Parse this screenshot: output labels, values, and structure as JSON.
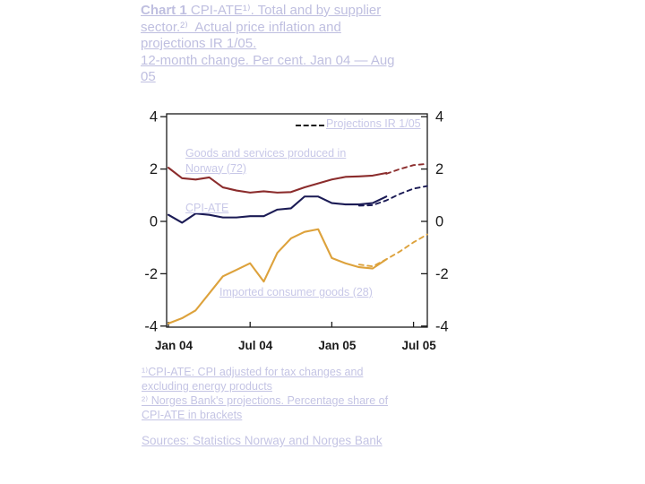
{
  "title": {
    "bold_lead": "Chart 1",
    "line1_rest": " CPI-ATE¹⁾. Total and by supplier",
    "line2": "sector.²⁾  Actual price inflation and",
    "line3": "projections IR 1/05.",
    "line4": "12-month change. Per cent. Jan 04 — Aug",
    "line5": "05"
  },
  "legend": {
    "projections_label": "Projections IR 1/05"
  },
  "series_labels": {
    "produced_in_norway": "Goods and services produced in Norway (72)",
    "cpi_ate": "CPI-ATE",
    "imported_goods": "Imported consumer goods (28)"
  },
  "footnotes": {
    "fn1_line1": "¹⁾CPI-ATE: CPI adjusted for tax changes and",
    "fn1_line2": "excluding energy products",
    "fn2_line1": "²⁾ Norges Bank's projections. Percentage share of",
    "fn2_line2": "CPI-ATE in brackets",
    "sources": "Sources: Statistics Norway and Norges Bank"
  },
  "colors": {
    "title_text": "#bfbfe0",
    "chart_label_text": "#c8c8e8",
    "footnote_text": "#c4c4e4",
    "axis": "#1a1a1a",
    "legend_dash": "#1a1a1a",
    "cpi_ate_line": "#1b1b55",
    "norway_line": "#8b2c2c",
    "imported_line": "#dda23c"
  },
  "chart_data": {
    "type": "line",
    "title": "CPI-ATE, total and by supplier sector. Actual price inflation and projections IR 1/05. 12-month change. Per cent. Jan 04 - Aug 05",
    "x": [
      "Jan 04",
      "Feb 04",
      "Mar 04",
      "Apr 04",
      "May 04",
      "Jun 04",
      "Jul 04",
      "Aug 04",
      "Sep 04",
      "Oct 04",
      "Nov 04",
      "Dec 04",
      "Jan 05",
      "Feb 05",
      "Mar 05",
      "Apr 05",
      "May 05",
      "Jun 05",
      "Jul 05",
      "Aug 05"
    ],
    "x_tick_indices": [
      0,
      6,
      12,
      18
    ],
    "x_tick_labels": [
      "Jan 04",
      "Jul 04",
      "Jan 05",
      "Jul 05"
    ],
    "y_ticks": [
      4,
      2,
      0,
      -2,
      -4
    ],
    "ylim": [
      -4,
      4
    ],
    "grid": false,
    "legend_entry": "Projections IR 1/05",
    "series": [
      {
        "name": "CPI-ATE",
        "color": "#1b1b55",
        "actual": [
          0.25,
          -0.05,
          0.3,
          0.25,
          0.15,
          0.15,
          0.2,
          0.2,
          0.45,
          0.5,
          0.95,
          0.95,
          0.7,
          0.65,
          0.65,
          0.7,
          0.95
        ],
        "projection": {
          "start_index": 14,
          "values": [
            0.6,
            0.62,
            0.8,
            1.05,
            1.25,
            1.35
          ]
        }
      },
      {
        "name": "Goods and services produced in Norway (72)",
        "color": "#8b2c2c",
        "actual": [
          2.05,
          1.65,
          1.6,
          1.68,
          1.3,
          1.18,
          1.1,
          1.15,
          1.1,
          1.12,
          1.3,
          1.45,
          1.6,
          1.7,
          1.72,
          1.75,
          1.85
        ],
        "projection": {
          "start_index": 16,
          "values": [
            1.82,
            2.0,
            2.15,
            2.2
          ]
        }
      },
      {
        "name": "Imported consumer goods (28)",
        "color": "#dda23c",
        "actual": [
          -3.9,
          -3.7,
          -3.4,
          -2.75,
          -2.1,
          -1.85,
          -1.6,
          -2.3,
          -1.2,
          -0.65,
          -0.4,
          -0.3,
          -1.4,
          -1.6,
          -1.75,
          -1.8,
          -1.45
        ],
        "projection": {
          "start_index": 14,
          "values": [
            -1.65,
            -1.72,
            -1.45,
            -1.15,
            -0.8,
            -0.5
          ]
        }
      }
    ]
  }
}
